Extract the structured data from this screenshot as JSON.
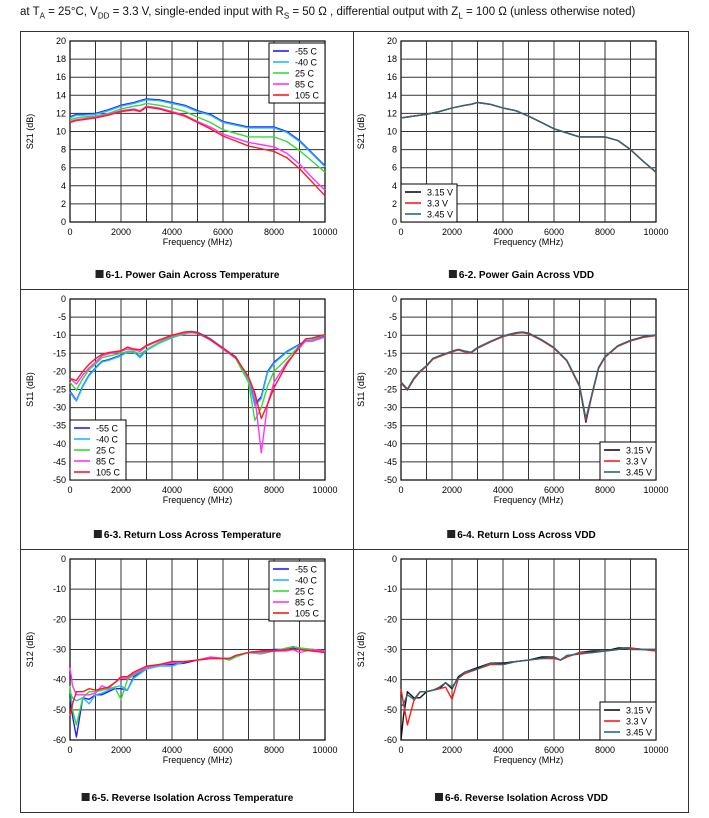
{
  "header": {
    "parts": [
      "at T",
      "A",
      " = 25°C, V",
      "DD",
      " = 3.3 V, single-ended input with R",
      "S",
      " = 50 Ω , differential output with Z",
      "L",
      " = 100 Ω  (unless otherwise noted)"
    ]
  },
  "colors": {
    "-55 C": "#1f1fff",
    "-40 C": "#22b8ff",
    "25 C": "#33dd33",
    "85 C": "#ff33ff",
    "105 C": "#ff1a1a",
    "3.15 V": "#111111",
    "3.3 V": "#ff1a1a",
    "3.45 V": "#2a6a78"
  },
  "chart_data": [
    {
      "type": "line",
      "caption": "6-1. Power Gain Across Temperature",
      "xlabel": "Frequency (MHz)",
      "ylabel": "S21 (dB)",
      "xlim": [
        0,
        10000
      ],
      "ylim": [
        0,
        20
      ],
      "xticks": [
        0,
        2000,
        4000,
        6000,
        8000,
        10000
      ],
      "yticks": [
        0,
        2,
        4,
        6,
        8,
        10,
        12,
        14,
        16,
        18,
        20
      ],
      "grid": true,
      "legend": "top-right",
      "x": [
        0,
        250,
        500,
        1000,
        1500,
        2000,
        2500,
        2750,
        3000,
        3500,
        4000,
        4500,
        5000,
        5500,
        6000,
        7000,
        8000,
        8500,
        9000,
        9500,
        10000
      ],
      "series": [
        {
          "name": "-55 C",
          "values": [
            11.6,
            11.9,
            11.9,
            12.0,
            12.4,
            12.9,
            13.2,
            13.4,
            13.6,
            13.5,
            13.2,
            12.9,
            12.3,
            11.9,
            11.1,
            10.5,
            10.5,
            10.0,
            9.0,
            7.6,
            6.2
          ]
        },
        {
          "name": "-40 C",
          "values": [
            11.5,
            11.8,
            11.8,
            11.9,
            12.3,
            12.8,
            13.1,
            13.3,
            13.5,
            13.4,
            13.1,
            12.8,
            12.2,
            11.8,
            11.0,
            10.4,
            10.4,
            9.9,
            8.9,
            7.5,
            6.1
          ]
        },
        {
          "name": "25 C",
          "values": [
            11.3,
            11.5,
            11.6,
            11.7,
            12.0,
            12.5,
            12.8,
            12.9,
            13.1,
            12.9,
            12.6,
            12.2,
            11.6,
            11.0,
            10.2,
            9.4,
            9.4,
            8.9,
            7.9,
            6.7,
            5.5
          ]
        },
        {
          "name": "85 C",
          "values": [
            11.1,
            11.3,
            11.4,
            11.6,
            11.9,
            12.3,
            12.5,
            12.3,
            12.8,
            12.6,
            12.2,
            11.8,
            11.1,
            10.5,
            9.7,
            8.8,
            8.3,
            7.6,
            6.4,
            4.9,
            3.5
          ]
        },
        {
          "name": "105 C",
          "values": [
            11.0,
            11.2,
            11.3,
            11.5,
            11.8,
            12.2,
            12.4,
            12.2,
            12.7,
            12.5,
            12.1,
            11.7,
            11.0,
            10.3,
            9.5,
            8.4,
            7.8,
            7.1,
            5.9,
            4.4,
            2.9
          ]
        }
      ]
    },
    {
      "type": "line",
      "caption": "6-2. Power Gain Across VDD",
      "xlabel": "Frequency (MHz)",
      "ylabel": "S21 (dB)",
      "xlim": [
        0,
        10000
      ],
      "ylim": [
        0,
        20
      ],
      "xticks": [
        0,
        2000,
        4000,
        6000,
        8000,
        10000
      ],
      "yticks": [
        0,
        2,
        4,
        6,
        8,
        10,
        12,
        14,
        16,
        18,
        20
      ],
      "grid": true,
      "legend": "bottom-left",
      "x": [
        0,
        250,
        500,
        1000,
        1500,
        2000,
        2500,
        2750,
        3000,
        3500,
        4000,
        4500,
        5000,
        5500,
        6000,
        7000,
        8000,
        8500,
        9000,
        9500,
        10000
      ],
      "series": [
        {
          "name": "3.15 V",
          "values": [
            11.5,
            11.6,
            11.7,
            11.9,
            12.2,
            12.6,
            12.9,
            13.0,
            13.2,
            13.0,
            12.6,
            12.3,
            11.7,
            11.0,
            10.3,
            9.4,
            9.4,
            9.0,
            8.0,
            6.7,
            5.5
          ]
        },
        {
          "name": "3.3 V",
          "values": [
            11.5,
            11.6,
            11.7,
            11.9,
            12.2,
            12.6,
            12.9,
            13.0,
            13.2,
            13.0,
            12.6,
            12.3,
            11.7,
            11.0,
            10.3,
            9.4,
            9.4,
            9.0,
            8.0,
            6.7,
            5.5
          ]
        },
        {
          "name": "3.45 V",
          "values": [
            11.5,
            11.6,
            11.7,
            11.9,
            12.2,
            12.6,
            12.9,
            13.0,
            13.2,
            13.0,
            12.6,
            12.3,
            11.7,
            11.0,
            10.3,
            9.4,
            9.4,
            9.0,
            8.0,
            6.7,
            5.5
          ]
        }
      ]
    },
    {
      "type": "line",
      "caption": "6-3. Return Loss Across Temperature",
      "xlabel": "Frequency (MHz)",
      "ylabel": "S11 (dB)",
      "xlim": [
        0,
        10000
      ],
      "ylim": [
        -50,
        0
      ],
      "xticks": [
        0,
        2000,
        4000,
        6000,
        8000,
        10000
      ],
      "yticks": [
        -50,
        -45,
        -40,
        -35,
        -30,
        -25,
        -20,
        -15,
        -10,
        -5,
        0
      ],
      "grid": true,
      "legend": "bottom-left",
      "x": [
        0,
        250,
        500,
        750,
        1000,
        1250,
        1500,
        2000,
        2250,
        2500,
        2750,
        3000,
        3500,
        4000,
        4500,
        4750,
        5000,
        5500,
        6000,
        6500,
        7000,
        7250,
        7500,
        7750,
        8000,
        8500,
        9000,
        9250,
        9500,
        10000
      ],
      "series": [
        {
          "name": "-55 C",
          "values": [
            -25.5,
            -28,
            -24,
            -21,
            -19,
            -17.2,
            -16.8,
            -15.5,
            -14.5,
            -14.5,
            -16,
            -14,
            -12,
            -10.5,
            -9.5,
            -9,
            -9.2,
            -11,
            -13.5,
            -16,
            -22,
            -29,
            -27,
            -20,
            -17.5,
            -14.5,
            -12.5,
            -11.5,
            -11.5,
            -10.3
          ]
        },
        {
          "name": "-40 C",
          "values": [
            -25.8,
            -28.2,
            -24.2,
            -21.2,
            -19.2,
            -17.4,
            -17,
            -15.7,
            -14.7,
            -14.7,
            -16.2,
            -14.2,
            -12.2,
            -10.7,
            -9.6,
            -9.1,
            -9.3,
            -11.1,
            -13.6,
            -16.2,
            -22.3,
            -29.5,
            -27.5,
            -20.3,
            -17.8,
            -14.7,
            -12.7,
            -11.7,
            -11.7,
            -10.5
          ]
        },
        {
          "name": "25 C",
          "values": [
            -23,
            -25.2,
            -22,
            -19.5,
            -18,
            -16.2,
            -15.8,
            -15,
            -14.5,
            -14.5,
            -15.2,
            -14,
            -12,
            -10.5,
            -9.5,
            -9.3,
            -9.5,
            -11.3,
            -13.8,
            -16.5,
            -23,
            -33.5,
            -30,
            -24,
            -20,
            -16.5,
            -13,
            -11,
            -11,
            -10
          ]
        },
        {
          "name": "85 C",
          "values": [
            -22,
            -23.5,
            -21,
            -19,
            -17.5,
            -15.7,
            -15.2,
            -14.5,
            -13.8,
            -14,
            -14.5,
            -13,
            -11.5,
            -10.2,
            -9.3,
            -9.2,
            -9.4,
            -11.3,
            -13.8,
            -16.3,
            -21.5,
            -27,
            -42.5,
            -29,
            -23,
            -17.5,
            -13.5,
            -11.5,
            -11.5,
            -10.5
          ]
        },
        {
          "name": "105 C",
          "values": [
            -22,
            -22.5,
            -20,
            -18,
            -16.5,
            -15.3,
            -14.8,
            -14.3,
            -13.3,
            -13.8,
            -14,
            -12.8,
            -11.3,
            -10,
            -9.1,
            -9,
            -9.3,
            -11.2,
            -13.6,
            -16.2,
            -21.5,
            -26,
            -33,
            -29,
            -24.5,
            -18,
            -13,
            -11,
            -10.8,
            -9.8
          ]
        }
      ]
    },
    {
      "type": "line",
      "caption": "6-4. Return Loss Across VDD",
      "xlabel": "Frequency (MHz)",
      "ylabel": "S11 (dB)",
      "xlim": [
        0,
        10000
      ],
      "ylim": [
        -50,
        0
      ],
      "xticks": [
        0,
        2000,
        4000,
        6000,
        8000,
        10000
      ],
      "yticks": [
        -50,
        -45,
        -40,
        -35,
        -30,
        -25,
        -20,
        -15,
        -10,
        -5,
        0
      ],
      "grid": true,
      "legend": "bottom-right",
      "x": [
        0,
        250,
        500,
        750,
        1000,
        1250,
        1500,
        2000,
        2250,
        2500,
        2750,
        3000,
        3500,
        4000,
        4500,
        4750,
        5000,
        5500,
        6000,
        6500,
        7000,
        7250,
        7500,
        7750,
        8000,
        8500,
        9000,
        9250,
        9500,
        10000
      ],
      "series": [
        {
          "name": "3.15 V",
          "values": [
            -23,
            -25,
            -22,
            -20,
            -18.5,
            -16.5,
            -15.8,
            -14.5,
            -14,
            -14.5,
            -14.8,
            -13.5,
            -11.8,
            -10.3,
            -9.4,
            -9.2,
            -9.5,
            -11.3,
            -13.5,
            -17,
            -24,
            -34,
            -26,
            -19,
            -16,
            -13,
            -11.5,
            -11,
            -10.5,
            -10
          ]
        },
        {
          "name": "3.3 V",
          "values": [
            -23.2,
            -25.2,
            -22.2,
            -20.1,
            -18.6,
            -16.6,
            -15.9,
            -14.6,
            -14.1,
            -14.6,
            -14.9,
            -13.6,
            -11.9,
            -10.4,
            -9.5,
            -9.3,
            -9.6,
            -11.4,
            -13.6,
            -17.1,
            -24.2,
            -33.5,
            -26.2,
            -19.2,
            -16.1,
            -13.1,
            -11.6,
            -11.1,
            -10.6,
            -10.1
          ]
        },
        {
          "name": "3.45 V",
          "values": [
            -22.9,
            -24.9,
            -21.9,
            -19.9,
            -18.4,
            -16.4,
            -15.7,
            -14.4,
            -13.9,
            -14.4,
            -14.7,
            -13.4,
            -11.7,
            -10.2,
            -9.3,
            -9.1,
            -9.4,
            -11.2,
            -13.4,
            -16.9,
            -23.8,
            -33,
            -25.8,
            -18.9,
            -15.9,
            -12.9,
            -11.4,
            -10.9,
            -10.4,
            -9.9
          ]
        }
      ]
    },
    {
      "type": "line",
      "caption": "6-5. Reverse Isolation Across Temperature",
      "xlabel": "Frequency (MHz)",
      "ylabel": "S12 (dB)",
      "xlim": [
        0,
        10000
      ],
      "ylim": [
        -60,
        0
      ],
      "xticks": [
        0,
        2000,
        4000,
        6000,
        8000,
        10000
      ],
      "yticks": [
        -60,
        -50,
        -40,
        -30,
        -20,
        -10,
        0
      ],
      "grid": true,
      "legend": "top-right",
      "x": [
        0,
        100,
        250,
        500,
        750,
        1000,
        1250,
        1500,
        1750,
        2000,
        2250,
        2500,
        3000,
        3500,
        4000,
        4500,
        5000,
        5500,
        6000,
        6250,
        6500,
        7000,
        7500,
        8000,
        8500,
        8750,
        9000,
        9500,
        10000
      ],
      "series": [
        {
          "name": "-55 C",
          "values": [
            -46,
            -52,
            -59,
            -46,
            -46.5,
            -45,
            -45,
            -44,
            -43,
            -43,
            -43.5,
            -39,
            -36,
            -35,
            -35,
            -34.5,
            -33.5,
            -33,
            -33,
            -33,
            -32,
            -31,
            -30.5,
            -30,
            -30,
            -29.5,
            -30,
            -30,
            -30.5
          ]
        },
        {
          "name": "-40 C",
          "values": [
            -44,
            -46,
            -47,
            -46,
            -48,
            -45,
            -44.5,
            -43.5,
            -42.5,
            -42,
            -43.5,
            -39.5,
            -36.5,
            -35.5,
            -35.5,
            -34,
            -33.5,
            -33,
            -33,
            -33,
            -32,
            -31,
            -30.5,
            -30.5,
            -29.5,
            -29,
            -29.5,
            -30,
            -30.5
          ]
        },
        {
          "name": "25 C",
          "values": [
            -42,
            -50,
            -55,
            -46,
            -44,
            -44,
            -43.5,
            -43,
            -42.5,
            -46.5,
            -40,
            -38.5,
            -36,
            -35,
            -34.5,
            -34,
            -33.5,
            -33,
            -33,
            -33.5,
            -32.5,
            -31,
            -31.5,
            -30.5,
            -29.5,
            -29,
            -29.5,
            -30,
            -31
          ]
        },
        {
          "name": "85 C",
          "values": [
            -36,
            -42,
            -45,
            -45,
            -45,
            -44.5,
            -42,
            -43,
            -41,
            -39.5,
            -39.5,
            -38,
            -36,
            -35,
            -34.5,
            -34,
            -33.5,
            -32.5,
            -33,
            -33,
            -32,
            -31,
            -31,
            -30.5,
            -30.5,
            -30,
            -31,
            -30,
            -30.5
          ]
        },
        {
          "name": "105 C",
          "values": [
            -52,
            -48,
            -44,
            -44,
            -43,
            -43.5,
            -43,
            -42.5,
            -41,
            -39,
            -39,
            -37.5,
            -35.5,
            -35,
            -34,
            -34,
            -33.5,
            -33,
            -33,
            -33,
            -32,
            -31,
            -30.5,
            -30.5,
            -30,
            -30,
            -30,
            -30.5,
            -31
          ]
        }
      ]
    },
    {
      "type": "line",
      "caption": "6-6. Reverse Isolation Across VDD",
      "xlabel": "Frequency (MHz)",
      "ylabel": "S12 (dB)",
      "xlim": [
        0,
        10000
      ],
      "ylim": [
        -60,
        0
      ],
      "xticks": [
        0,
        2000,
        4000,
        6000,
        8000,
        10000
      ],
      "yticks": [
        -60,
        -50,
        -40,
        -30,
        -20,
        -10,
        0
      ],
      "grid": true,
      "legend": "bottom-right",
      "x": [
        0,
        100,
        250,
        500,
        750,
        1000,
        1250,
        1500,
        1750,
        2000,
        2250,
        2500,
        3000,
        3500,
        4000,
        4500,
        5000,
        5500,
        6000,
        6250,
        6500,
        7000,
        7500,
        8000,
        8500,
        8750,
        9000,
        9500,
        10000
      ],
      "series": [
        {
          "name": "3.15 V",
          "values": [
            -60,
            -52,
            -44,
            -46,
            -46,
            -44,
            -43.5,
            -43,
            -41,
            -43,
            -39,
            -37.5,
            -36,
            -34.5,
            -34.5,
            -34,
            -33.5,
            -32.5,
            -32.5,
            -33.5,
            -32.5,
            -31,
            -30.5,
            -30.5,
            -29.5,
            -29.5,
            -29.5,
            -30,
            -30
          ]
        },
        {
          "name": "3.3 V",
          "values": [
            -43,
            -48,
            -55,
            -47,
            -44,
            -44,
            -43.5,
            -43,
            -42.5,
            -46.5,
            -39.5,
            -38,
            -36.5,
            -35,
            -35,
            -34,
            -33.5,
            -33,
            -33,
            -33.5,
            -32.5,
            -31,
            -31,
            -30.5,
            -30,
            -29.5,
            -29.5,
            -30,
            -30.5
          ]
        },
        {
          "name": "3.45 V",
          "values": [
            -49,
            -48,
            -45,
            -46.5,
            -44,
            -44,
            -43.5,
            -42.5,
            -41,
            -42.5,
            -39.5,
            -37.5,
            -36.5,
            -34.5,
            -35,
            -34,
            -33.5,
            -33,
            -32.5,
            -33.5,
            -32,
            -31.5,
            -31,
            -30.5,
            -30,
            -29.5,
            -30,
            -30,
            -30
          ]
        }
      ]
    }
  ]
}
